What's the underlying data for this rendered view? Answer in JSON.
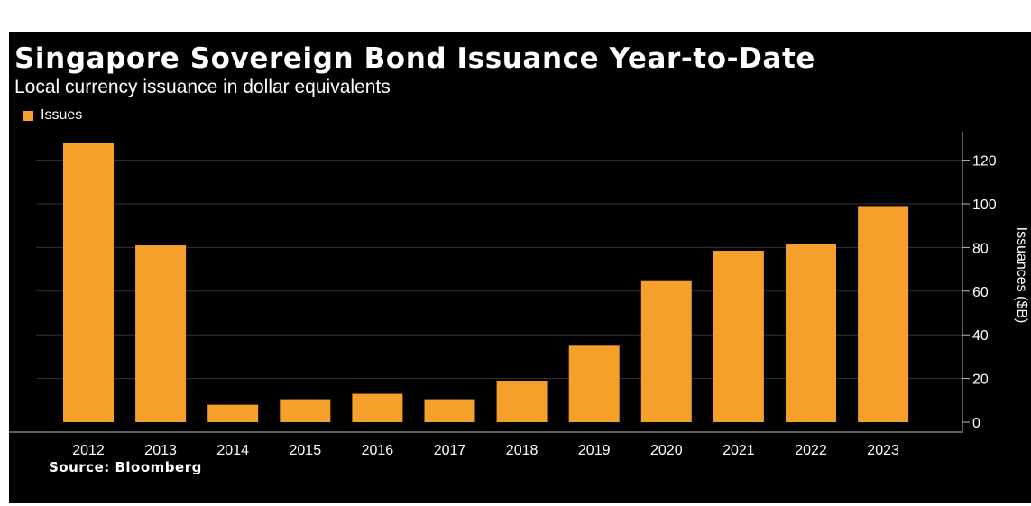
{
  "title": "Singapore Sovereign Bond Issuance Year-to-Date",
  "subtitle": "Local currency issuance in dollar equivalents",
  "source": "Source: Bloomberg",
  "colors": {
    "background": "#000000",
    "bar": "#f5a02a",
    "text": "#ffffff",
    "grid": "#333333"
  },
  "chart_data": {
    "type": "bar",
    "title": "Singapore Sovereign Bond Issuance Year-to-Date",
    "subtitle": "Local currency issuance in dollar equivalents",
    "categories": [
      "2012",
      "2013",
      "2014",
      "2015",
      "2016",
      "2017",
      "2018",
      "2019",
      "2020",
      "2021",
      "2022",
      "2023"
    ],
    "series": [
      {
        "name": "Issues",
        "values": [
          128,
          81,
          8,
          10.5,
          13,
          10.5,
          19,
          35,
          65,
          78.5,
          81.5,
          99
        ]
      }
    ],
    "ylabel": "Issuances ($B)",
    "xlabel": "",
    "ylim": [
      0,
      130
    ],
    "yticks": [
      0,
      20,
      40,
      60,
      80,
      100,
      120
    ],
    "y_axis_side": "right",
    "legend_position": "top-left",
    "grid": true
  }
}
